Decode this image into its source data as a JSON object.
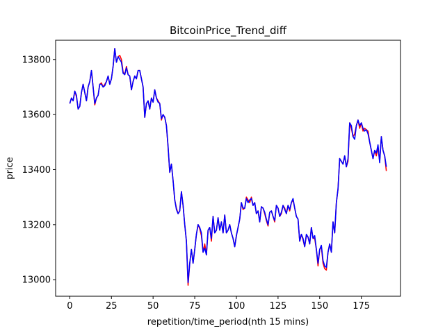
{
  "chart_data": {
    "type": "line",
    "title": "BitcoinPrice_Trend_diff",
    "xlabel": "repetition/time_period(nth 15 mins)",
    "ylabel": "price",
    "xlim": [
      -8.5,
      198.5
    ],
    "ylim": [
      12940,
      13870
    ],
    "xticks": [
      0,
      25,
      50,
      75,
      100,
      125,
      150,
      175
    ],
    "yticks": [
      13000,
      13200,
      13400,
      13600,
      13800
    ],
    "grid": false,
    "legend": "none",
    "series": [
      {
        "color": "#ff0000",
        "values": [
          13640,
          13660,
          13650,
          13685,
          13665,
          13620,
          13630,
          13680,
          13710,
          13680,
          13650,
          13700,
          13720,
          13760,
          13700,
          13635,
          13660,
          13670,
          13710,
          13715,
          13700,
          13710,
          13720,
          13740,
          13710,
          13730,
          13775,
          13840,
          13790,
          13810,
          13815,
          13800,
          13755,
          13745,
          13775,
          13745,
          13740,
          13690,
          13720,
          13740,
          13730,
          13760,
          13760,
          13730,
          13700,
          13590,
          13640,
          13650,
          13620,
          13660,
          13645,
          13690,
          13660,
          13650,
          13640,
          13580,
          13600,
          13590,
          13560,
          13480,
          13390,
          13420,
          13360,
          13290,
          13260,
          13240,
          13250,
          13320,
          13270,
          13200,
          13140,
          12980,
          13060,
          13110,
          13060,
          13110,
          13165,
          13200,
          13185,
          13160,
          13100,
          13130,
          13090,
          13180,
          13190,
          13140,
          13230,
          13170,
          13180,
          13225,
          13180,
          13210,
          13170,
          13235,
          13170,
          13180,
          13200,
          13170,
          13150,
          13120,
          13160,
          13190,
          13220,
          13280,
          13255,
          13260,
          13300,
          13290,
          13280,
          13300,
          13270,
          13280,
          13240,
          13250,
          13210,
          13265,
          13260,
          13240,
          13215,
          13195,
          13245,
          13250,
          13230,
          13210,
          13270,
          13260,
          13230,
          13240,
          13270,
          13260,
          13240,
          13270,
          13250,
          13280,
          13290,
          13260,
          13230,
          13220,
          13140,
          13165,
          13145,
          13120,
          13160,
          13155,
          13130,
          13190,
          13150,
          13150,
          13110,
          13050,
          13110,
          13120,
          13060,
          13040,
          13035,
          13100,
          13130,
          13100,
          13210,
          13170,
          13280,
          13330,
          13440,
          13430,
          13420,
          13450,
          13410,
          13430,
          13570,
          13550,
          13520,
          13530,
          13560,
          13580,
          13550,
          13570,
          13540,
          13550,
          13545,
          13540,
          13500,
          13470,
          13440,
          13470,
          13450,
          13480,
          13430,
          13520,
          13470,
          13450,
          13395
        ]
      },
      {
        "color": "#0000ff",
        "values": [
          13640,
          13660,
          13650,
          13685,
          13670,
          13620,
          13630,
          13680,
          13710,
          13680,
          13650,
          13700,
          13720,
          13760,
          13700,
          13640,
          13660,
          13670,
          13710,
          13710,
          13700,
          13705,
          13720,
          13740,
          13710,
          13730,
          13775,
          13840,
          13790,
          13810,
          13800,
          13790,
          13750,
          13745,
          13770,
          13745,
          13740,
          13690,
          13720,
          13740,
          13730,
          13760,
          13760,
          13730,
          13700,
          13590,
          13640,
          13650,
          13620,
          13660,
          13645,
          13690,
          13660,
          13645,
          13640,
          13585,
          13600,
          13590,
          13560,
          13485,
          13390,
          13420,
          13360,
          13290,
          13255,
          13240,
          13250,
          13320,
          13270,
          13200,
          13140,
          12990,
          13060,
          13110,
          13060,
          13110,
          13165,
          13200,
          13190,
          13170,
          13100,
          13115,
          13090,
          13180,
          13190,
          13150,
          13230,
          13170,
          13180,
          13225,
          13180,
          13210,
          13170,
          13235,
          13170,
          13180,
          13200,
          13170,
          13150,
          13120,
          13160,
          13190,
          13220,
          13280,
          13260,
          13260,
          13295,
          13280,
          13290,
          13295,
          13270,
          13280,
          13240,
          13250,
          13210,
          13265,
          13260,
          13245,
          13220,
          13200,
          13245,
          13250,
          13230,
          13215,
          13270,
          13260,
          13230,
          13245,
          13270,
          13255,
          13240,
          13270,
          13255,
          13280,
          13295,
          13260,
          13230,
          13220,
          13140,
          13165,
          13150,
          13120,
          13165,
          13155,
          13130,
          13190,
          13150,
          13160,
          13110,
          13060,
          13110,
          13125,
          13070,
          13050,
          13045,
          13100,
          13130,
          13100,
          13210,
          13170,
          13280,
          13330,
          13440,
          13430,
          13420,
          13450,
          13410,
          13440,
          13570,
          13560,
          13520,
          13510,
          13560,
          13580,
          13560,
          13570,
          13550,
          13540,
          13545,
          13530,
          13500,
          13470,
          13440,
          13470,
          13460,
          13490,
          13425,
          13520,
          13470,
          13450,
          13410
        ]
      }
    ]
  }
}
